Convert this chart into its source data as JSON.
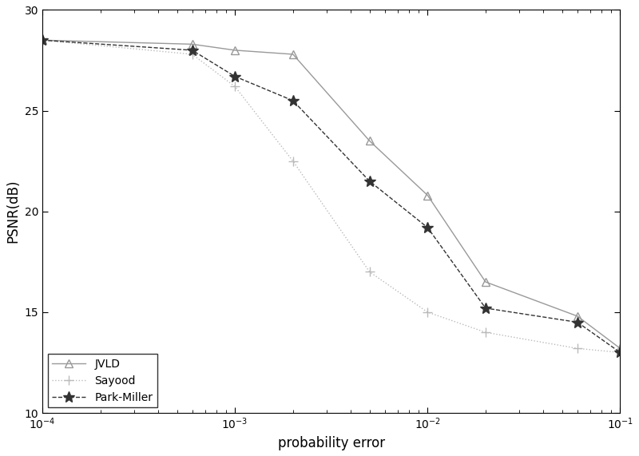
{
  "title": "",
  "xlabel": "probability error",
  "ylabel": "PSNR(dB)",
  "xlim": [
    0.0001,
    0.1
  ],
  "ylim": [
    10,
    30
  ],
  "yticks": [
    10,
    15,
    20,
    25,
    30
  ],
  "background_color": "#ffffff",
  "JVLD": {
    "x": [
      0.0001,
      0.0006,
      0.001,
      0.002,
      0.005,
      0.01,
      0.02,
      0.06,
      0.1
    ],
    "y": [
      28.5,
      28.3,
      28.0,
      27.8,
      23.5,
      20.8,
      16.5,
      14.8,
      13.2
    ],
    "color": "#999999",
    "linestyle": "-",
    "marker": "^",
    "markersize": 7,
    "linewidth": 1.0,
    "label": "JVLD"
  },
  "Sayood": {
    "x": [
      0.0001,
      0.0006,
      0.001,
      0.002,
      0.005,
      0.01,
      0.02,
      0.06,
      0.1
    ],
    "y": [
      28.5,
      27.8,
      26.2,
      22.5,
      17.0,
      15.0,
      14.0,
      13.2,
      13.0
    ],
    "color": "#bbbbbb",
    "linestyle": ":",
    "marker": "+",
    "markersize": 8,
    "linewidth": 1.0,
    "label": "Sayood"
  },
  "ParkMiller": {
    "x": [
      0.0001,
      0.0006,
      0.001,
      0.002,
      0.005,
      0.01,
      0.02,
      0.06,
      0.1
    ],
    "y": [
      28.5,
      28.0,
      26.7,
      25.5,
      21.5,
      19.2,
      15.2,
      14.5,
      13.0
    ],
    "color": "#333333",
    "linestyle": "--",
    "marker": "*",
    "markersize": 10,
    "linewidth": 1.0,
    "label": "Park-Miller"
  },
  "legend_loc": "lower left",
  "legend_fontsize": 10,
  "axis_fontsize": 12,
  "tick_fontsize": 10
}
